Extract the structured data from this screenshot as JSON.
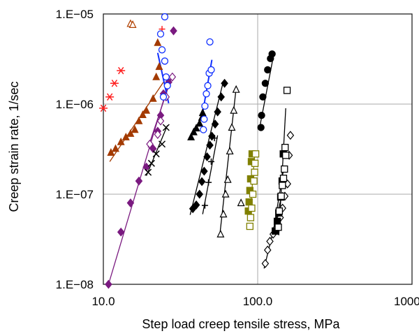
{
  "chart_data": {
    "type": "scatter",
    "title": "",
    "xlabel": "Step load creep tensile stress, MPa",
    "ylabel": "Creep strain rate, 1/sec",
    "xscale": "log",
    "yscale": "log",
    "xlim": [
      10,
      1000
    ],
    "ylim": [
      1e-08,
      1e-05
    ],
    "x_ticks": [
      {
        "value": 10,
        "label": "10.0"
      },
      {
        "value": 100,
        "label": "100.0"
      },
      {
        "value": 1000,
        "label": "1000.0"
      }
    ],
    "y_ticks": [
      {
        "value": 1e-08,
        "label": "1.E−08"
      },
      {
        "value": 1e-07,
        "label": "1.E−07"
      },
      {
        "value": 1e-06,
        "label": "1.E−06"
      },
      {
        "value": 1e-05,
        "label": "1.E−05"
      }
    ],
    "grid": true,
    "legend": "none",
    "series": [
      {
        "marker": "star",
        "color": "#ff2020",
        "fit": false,
        "points": [
          [
            10.0,
            9e-07
          ],
          [
            11.0,
            1.2e-06
          ],
          [
            11.8,
            1.7e-06
          ],
          [
            13.0,
            2.35e-06
          ]
        ]
      },
      {
        "marker": "triangle-open",
        "color": "#b04000",
        "fit": false,
        "points": [
          [
            15.0,
            7.8e-06
          ],
          [
            15.5,
            7.6e-06
          ]
        ]
      },
      {
        "marker": "triangle",
        "color": "#a33a00",
        "fit": true,
        "fit_from": [
          11.0,
          2.3e-07
        ],
        "fit_to": [
          24.5,
          1.75e-06
        ],
        "points": [
          [
            11.2,
            2.9e-07
          ],
          [
            12.0,
            3.2e-07
          ],
          [
            13.0,
            3.8e-07
          ],
          [
            14.0,
            4.3e-07
          ],
          [
            15.0,
            4.7e-07
          ],
          [
            16.0,
            5.2e-07
          ],
          [
            17.0,
            6.5e-07
          ],
          [
            18.0,
            7.6e-07
          ],
          [
            19.0,
            8.5e-07
          ],
          [
            21.0,
            1.15e-06
          ],
          [
            22.0,
            2e-06
          ],
          [
            23.0,
            2.6e-06
          ],
          [
            22.5,
            4.8e-06
          ]
        ]
      },
      {
        "marker": "plus",
        "color": "#ff2020",
        "fit": false,
        "points": [
          [
            24.0,
            6.8e-06
          ]
        ]
      },
      {
        "marker": "diamond",
        "color": "#7a1a80",
        "fit": true,
        "fit_from": [
          10.8,
          1e-08
        ],
        "fit_to": [
          27.0,
          1.9e-06
        ],
        "points": [
          [
            10.8,
            1e-08
          ],
          [
            13.0,
            3.8e-08
          ],
          [
            15.0,
            8e-08
          ],
          [
            17.0,
            1.4e-07
          ],
          [
            19.0,
            2e-07
          ],
          [
            21.0,
            3.2e-07
          ],
          [
            22.5,
            5e-07
          ],
          [
            23.5,
            7.5e-07
          ],
          [
            24.5,
            1.3e-06
          ],
          [
            26.5,
            1.75e-06
          ]
        ]
      },
      {
        "marker": "diamond",
        "color": "#7a1a80",
        "fit": false,
        "points": [
          [
            28.5,
            6.5e-06
          ]
        ]
      },
      {
        "marker": "diamond-open",
        "color": "#7a1a80",
        "fit": true,
        "fit_from": [
          19.5,
          3.3e-07
        ],
        "fit_to": [
          28.0,
          2.1e-06
        ],
        "points": [
          [
            20.0,
            3.6e-07
          ],
          [
            22.5,
            4.6e-07
          ],
          [
            23.5,
            6.5e-07
          ],
          [
            25.5,
            1.2e-06
          ],
          [
            28.0,
            2e-06
          ]
        ]
      },
      {
        "marker": "cross",
        "color": "#000000",
        "fit": true,
        "fit_from": [
          19.0,
          1.6e-07
        ],
        "fit_to": [
          26.0,
          5.8e-07
        ],
        "points": [
          [
            19.5,
            1.75e-07
          ],
          [
            20.5,
            2.2e-07
          ],
          [
            22.0,
            2.8e-07
          ],
          [
            24.0,
            3.6e-07
          ],
          [
            25.5,
            5.5e-07
          ]
        ]
      },
      {
        "marker": "circle-open",
        "color": "#1030ff",
        "fit": true,
        "fit_from": [
          22.5,
          3.7e-06
        ],
        "fit_to": [
          26.5,
          1.02e-06
        ],
        "points": [
          [
            25.0,
            9.3e-06
          ],
          [
            23.5,
            6e-06
          ],
          [
            24.0,
            4e-06
          ],
          [
            25.0,
            3e-06
          ],
          [
            25.5,
            2e-06
          ],
          [
            26.0,
            1.6e-06
          ],
          [
            24.5,
            1.2e-06
          ]
        ]
      },
      {
        "marker": "triangle",
        "color": "#000000",
        "fit": false,
        "points": [
          [
            37.0,
            4.3e-07
          ],
          [
            38.5,
            4.9e-07
          ],
          [
            40.0,
            5.4e-07
          ],
          [
            42.0,
            6.1e-07
          ],
          [
            43.5,
            7.1e-07
          ],
          [
            44.0,
            8e-07
          ]
        ]
      },
      {
        "marker": "circle-open",
        "color": "#1030ff",
        "fit": true,
        "fit_from": [
          44.0,
          8e-07
        ],
        "fit_to": [
          50.5,
          3.1e-06
        ],
        "points": [
          [
            44.5,
            5.2e-07
          ],
          [
            45.0,
            6.8e-07
          ],
          [
            45.5,
            9.5e-07
          ],
          [
            46.5,
            1.3e-06
          ],
          [
            47.5,
            1.6e-06
          ],
          [
            48.5,
            2.2e-06
          ],
          [
            50.0,
            2.4e-06
          ],
          [
            49.0,
            4.9e-06
          ]
        ]
      },
      {
        "marker": "diamond",
        "color": "#000000",
        "fit": true,
        "fit_from": [
          36.5,
          5.9e-08
        ],
        "fit_to": [
          60.0,
          1.8e-06
        ],
        "points": [
          [
            38.0,
            6.9e-08
          ],
          [
            40.0,
            7.6e-08
          ],
          [
            42.0,
            1e-07
          ],
          [
            43.5,
            1.38e-07
          ],
          [
            45.0,
            1.8e-07
          ],
          [
            47.0,
            2.6e-07
          ],
          [
            49.0,
            3.5e-07
          ],
          [
            50.5,
            4.4e-07
          ],
          [
            53.0,
            6e-07
          ],
          [
            55.0,
            8.2e-07
          ],
          [
            58.0,
            1.2e-06
          ],
          [
            61.0,
            1.7e-06
          ]
        ]
      },
      {
        "marker": "plus",
        "color": "#000000",
        "fit": true,
        "fit_from": [
          44.0,
          6e-08
        ],
        "fit_to": [
          55.0,
          4.5e-07
        ],
        "points": [
          [
            45.5,
            7.5e-08
          ],
          [
            48.0,
            1.35e-07
          ],
          [
            50.0,
            2.3e-07
          ],
          [
            52.5,
            4.2e-07
          ]
        ]
      },
      {
        "marker": "triangle-open",
        "color": "#000000",
        "fit": true,
        "fit_from": [
          57.0,
          3.7e-08
        ],
        "fit_to": [
          72.0,
          1.35e-06
        ],
        "points": [
          [
            57.5,
            3.6e-08
          ],
          [
            60.0,
            6e-08
          ],
          [
            62.0,
            1e-07
          ],
          [
            64.0,
            1.45e-07
          ],
          [
            66.0,
            3e-07
          ],
          [
            68.0,
            5.5e-07
          ],
          [
            70.0,
            8.5e-07
          ],
          [
            72.5,
            1.45e-06
          ]
        ]
      },
      {
        "marker": "triangle-open",
        "color": "#000000",
        "fit": false,
        "points": [
          [
            78.0,
            8e-08
          ]
        ]
      },
      {
        "marker": "square",
        "color": "#808000",
        "fit": false,
        "points": [
          [
            87.0,
            6.5e-08
          ],
          [
            88.0,
            8.2e-08
          ],
          [
            89.0,
            1.1e-07
          ],
          [
            90.0,
            1.48e-07
          ],
          [
            91.0,
            2.3e-07
          ],
          [
            92.0,
            2.8e-07
          ]
        ]
      },
      {
        "marker": "square-open",
        "color": "#808000",
        "fit": true,
        "fit_from": [
          88.5,
          5e-08
        ],
        "fit_to": [
          96.0,
          3e-07
        ],
        "points": [
          [
            89.0,
            4.4e-08
          ],
          [
            90.0,
            5.5e-08
          ],
          [
            91.5,
            7e-08
          ],
          [
            93.0,
            1e-07
          ],
          [
            94.5,
            1.4e-07
          ],
          [
            95.5,
            1.75e-07
          ],
          [
            96.0,
            2.2e-07
          ],
          [
            97.0,
            2.8e-07
          ]
        ]
      },
      {
        "marker": "circle",
        "color": "#000000",
        "fit": true,
        "fit_from": [
          104.0,
          6e-07
        ],
        "fit_to": [
          128.0,
          3.8e-06
        ],
        "points": [
          [
            105.0,
            5.5e-07
          ],
          [
            106.0,
            7.5e-07
          ],
          [
            108.0,
            1.2e-06
          ],
          [
            112.0,
            1.7e-06
          ],
          [
            116.0,
            2.4e-06
          ],
          [
            121.0,
            3.2e-06
          ],
          [
            124.0,
            3.6e-06
          ]
        ]
      },
      {
        "marker": "diamond-open",
        "color": "#000000",
        "fit": true,
        "fit_from": [
          110.0,
          1.5e-08
        ],
        "fit_to": [
          145.0,
          1.05e-07
        ],
        "points": [
          [
            112.0,
            1.7e-08
          ],
          [
            116.0,
            2.4e-08
          ],
          [
            120.0,
            3e-08
          ],
          [
            126.0,
            3.6e-08
          ],
          [
            132.0,
            4.2e-08
          ],
          [
            140.0,
            5.5e-08
          ],
          [
            145.0,
            7e-08
          ],
          [
            150.0,
            9.5e-08
          ],
          [
            156.0,
            1.3e-07
          ],
          [
            160.0,
            2.7e-07
          ],
          [
            163.0,
            4.5e-07
          ]
        ]
      },
      {
        "marker": "square",
        "color": "#000000",
        "fit": true,
        "fit_from": [
          126.0,
          3.8e-08
        ],
        "fit_to": [
          148.0,
          2e-07
        ],
        "points": [
          [
            130.0,
            3.9e-08
          ],
          [
            134.0,
            5e-08
          ],
          [
            137.0,
            6.2e-08
          ],
          [
            141.0,
            9.3e-08
          ],
          [
            144.0,
            1.4e-07
          ],
          [
            146.5,
            2.8e-07
          ]
        ]
      },
      {
        "marker": "square-open",
        "color": "#000000",
        "fit": true,
        "fit_from": [
          137.0,
          3.5e-08
        ],
        "fit_to": [
          152.0,
          9e-07
        ],
        "points": [
          [
            136.0,
            4.3e-08
          ],
          [
            138.0,
            6.5e-08
          ],
          [
            142.0,
            9.5e-08
          ],
          [
            144.5,
            1.25e-07
          ],
          [
            147.0,
            1.5e-07
          ],
          [
            149.0,
            1.9e-07
          ],
          [
            150.5,
            3.3e-07
          ],
          [
            152.0,
            2.7e-07
          ],
          [
            155.0,
            1.42e-06
          ]
        ]
      }
    ]
  }
}
